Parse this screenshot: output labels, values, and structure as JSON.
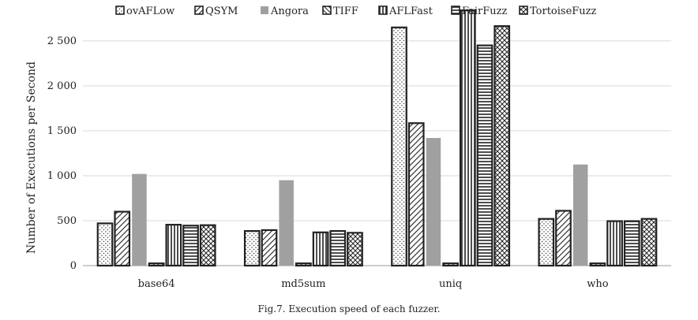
{
  "chart_data": {
    "type": "bar",
    "ylabel": "Number of Executions per Second",
    "ylim": [
      0,
      2850
    ],
    "yticks": [
      0,
      500,
      1000,
      1500,
      2000,
      2500
    ],
    "ytick_labels": [
      "0",
      "500",
      "1 000",
      "1 500",
      "2 000",
      "2 500"
    ],
    "grid": true,
    "legend_position": "top",
    "categories": [
      "base64",
      "md5sum",
      "uniq",
      "who"
    ],
    "series": [
      {
        "name": "ovAFLow",
        "pattern": "dots",
        "values": [
          470,
          385,
          2650,
          520
        ]
      },
      {
        "name": "QSYM",
        "pattern": "diag",
        "values": [
          600,
          395,
          1585,
          610
        ]
      },
      {
        "name": "Angora",
        "pattern": "gray",
        "values": [
          1020,
          950,
          1420,
          1125
        ]
      },
      {
        "name": "TIFF",
        "pattern": "diag2",
        "values": [
          25,
          25,
          25,
          25
        ]
      },
      {
        "name": "AFLFast",
        "pattern": "vlines",
        "values": [
          455,
          370,
          2840,
          495
        ]
      },
      {
        "name": "FairFuzz",
        "pattern": "hlines",
        "values": [
          445,
          385,
          2450,
          495
        ]
      },
      {
        "name": "TortoiseFuzz",
        "pattern": "cross",
        "values": [
          450,
          365,
          2665,
          520
        ]
      }
    ]
  },
  "caption": "Fig.7.   Execution speed of each fuzzer.",
  "colors": {
    "bar_stroke": "#222222",
    "angora_fill": "#a0a0a0",
    "grid": "#d9d9d9"
  }
}
